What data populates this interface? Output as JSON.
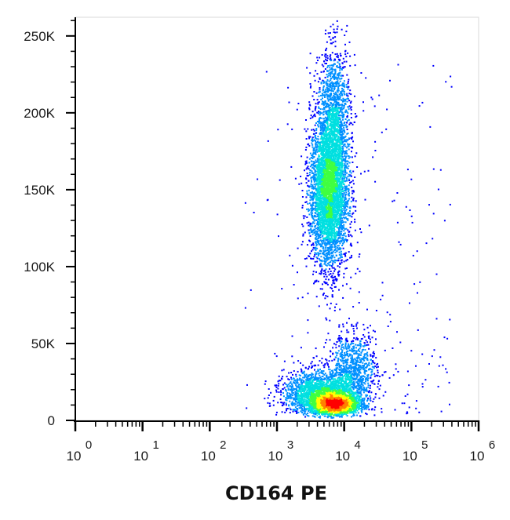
{
  "chart_data": {
    "type": "scatter",
    "style": "density-dot-plot",
    "xlabel": "CD164 PE",
    "ylabel": "",
    "x_scale": "log",
    "xlim": [
      1,
      1000000
    ],
    "ylim": [
      0,
      262144
    ],
    "x_ticks": [
      {
        "base": "10",
        "exp": "0",
        "value": 1
      },
      {
        "base": "10",
        "exp": "1",
        "value": 10
      },
      {
        "base": "10",
        "exp": "2",
        "value": 100
      },
      {
        "base": "10",
        "exp": "3",
        "value": 1000
      },
      {
        "base": "10",
        "exp": "4",
        "value": 10000
      },
      {
        "base": "10",
        "exp": "5",
        "value": 100000
      },
      {
        "base": "10",
        "exp": "6",
        "value": 1000000
      }
    ],
    "y_ticks": [
      {
        "label": "0",
        "value": 0
      },
      {
        "label": "50K",
        "value": 50000
      },
      {
        "label": "100K",
        "value": 100000
      },
      {
        "label": "150K",
        "value": 150000
      },
      {
        "label": "200K",
        "value": 200000
      },
      {
        "label": "250K",
        "value": 250000
      }
    ],
    "grid": false,
    "colormap": [
      "#0000ff",
      "#0090ff",
      "#00e0e0",
      "#40ff40",
      "#ffff00",
      "#ff8000",
      "#ff0000"
    ],
    "populations": [
      {
        "x_center": 7000,
        "y_center": 11000,
        "x_spread_decades": 0.17,
        "y_spread": 3000,
        "weight": 2600
      },
      {
        "x_center": 4500,
        "y_center": 18000,
        "x_spread_decades": 0.28,
        "y_spread": 7000,
        "weight": 2000
      },
      {
        "x_center": 13000,
        "y_center": 33000,
        "x_spread_decades": 0.18,
        "y_spread": 12000,
        "weight": 900
      },
      {
        "x_center": 5800,
        "y_center": 150000,
        "x_spread_decades": 0.14,
        "y_spread": 25000,
        "weight": 4200
      },
      {
        "x_center": 7000,
        "y_center": 200000,
        "x_spread_decades": 0.12,
        "y_spread": 22000,
        "weight": 1100
      }
    ]
  }
}
